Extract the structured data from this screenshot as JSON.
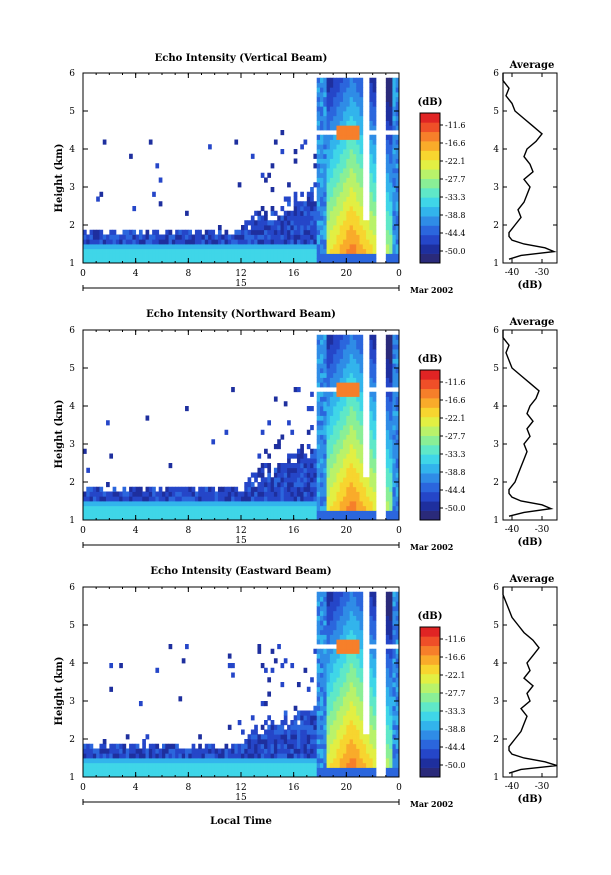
{
  "chart_data": [
    {
      "type": "heatmap",
      "title": "Echo Intensity (Vertical Beam)",
      "ylabel": "Height (km)",
      "xlabel": "",
      "xlim": [
        0,
        24
      ],
      "ylim": [
        1,
        6
      ],
      "xticks": [
        "0",
        "4",
        "8",
        "12",
        "16",
        "20",
        "0"
      ],
      "yticks": [
        "1",
        "2",
        "3",
        "4",
        "5",
        "6"
      ],
      "date_bar": {
        "day": "15",
        "month_year": "Mar 2002"
      },
      "colorbar": {
        "title": "(dB)",
        "labels": [
          "-11.6",
          "-16.6",
          "-22.1",
          "-27.7",
          "-33.3",
          "-38.8",
          "-44.4",
          "-50.0"
        ]
      },
      "profile": {
        "title": "Average",
        "xlabel": "(dB)",
        "xticks": [
          "-40",
          "-30"
        ],
        "xlim": [
          -43,
          -25
        ],
        "ylim": [
          1,
          6
        ],
        "heights": [
          1.1,
          1.2,
          1.3,
          1.4,
          1.5,
          1.6,
          1.7,
          1.8,
          1.9,
          2.0,
          2.2,
          2.4,
          2.6,
          2.8,
          3.0,
          3.2,
          3.4,
          3.6,
          3.8,
          4.0,
          4.2,
          4.4,
          4.6,
          4.8,
          5.0,
          5.2,
          5.4,
          5.6,
          5.8,
          6.0
        ],
        "values": [
          -41,
          -37,
          -26,
          -29,
          -36,
          -40,
          -41,
          -41,
          -40,
          -39,
          -37,
          -38,
          -36,
          -35,
          -34,
          -36,
          -33,
          -34,
          -36,
          -35,
          -32,
          -30,
          -33,
          -36,
          -39,
          -40,
          -42,
          -41,
          -43,
          -43
        ]
      }
    },
    {
      "type": "heatmap",
      "title": "Echo Intensity (Northward Beam)",
      "ylabel": "Height (km)",
      "xlabel": "",
      "xlim": [
        0,
        24
      ],
      "ylim": [
        1,
        6
      ],
      "xticks": [
        "0",
        "4",
        "8",
        "12",
        "16",
        "20",
        "0"
      ],
      "yticks": [
        "1",
        "2",
        "3",
        "4",
        "5",
        "6"
      ],
      "date_bar": {
        "day": "15",
        "month_year": "Mar 2002"
      },
      "colorbar": {
        "title": "(dB)",
        "labels": [
          "-11.6",
          "-16.6",
          "-22.1",
          "-27.7",
          "-33.3",
          "-38.8",
          "-44.4",
          "-50.0"
        ]
      },
      "profile": {
        "title": "Average",
        "xlabel": "(dB)",
        "xticks": [
          "-40",
          "-30"
        ],
        "xlim": [
          -43,
          -25
        ],
        "ylim": [
          1,
          6
        ],
        "heights": [
          1.1,
          1.2,
          1.3,
          1.4,
          1.5,
          1.6,
          1.7,
          1.8,
          1.9,
          2.0,
          2.2,
          2.4,
          2.6,
          2.8,
          3.0,
          3.2,
          3.4,
          3.6,
          3.8,
          4.0,
          4.2,
          4.4,
          4.6,
          4.8,
          5.0,
          5.2,
          5.4,
          5.6,
          5.8,
          6.0
        ],
        "values": [
          -41,
          -36,
          -27,
          -30,
          -37,
          -40,
          -41,
          -41,
          -40,
          -39,
          -38,
          -37,
          -36,
          -35,
          -36,
          -34,
          -35,
          -33,
          -35,
          -34,
          -32,
          -31,
          -34,
          -37,
          -40,
          -41,
          -42,
          -41,
          -43,
          -43
        ]
      }
    },
    {
      "type": "heatmap",
      "title": "Echo Intensity (Eastward Beam)",
      "ylabel": "Height (km)",
      "xlabel": "Local Time",
      "xlim": [
        0,
        24
      ],
      "ylim": [
        1,
        6
      ],
      "xticks": [
        "0",
        "4",
        "8",
        "12",
        "16",
        "20",
        "0"
      ],
      "yticks": [
        "1",
        "2",
        "3",
        "4",
        "5",
        "6"
      ],
      "date_bar": {
        "day": "15",
        "month_year": "Mar 2002"
      },
      "colorbar": {
        "title": "(dB)",
        "labels": [
          "-11.6",
          "-16.6",
          "-22.1",
          "-27.7",
          "-33.3",
          "-38.8",
          "-44.4",
          "-50.0"
        ]
      },
      "profile": {
        "title": "Average",
        "xlabel": "(dB)",
        "xticks": [
          "-40",
          "-30"
        ],
        "xlim": [
          -43,
          -25
        ],
        "ylim": [
          1,
          6
        ],
        "heights": [
          1.1,
          1.2,
          1.3,
          1.4,
          1.5,
          1.6,
          1.7,
          1.8,
          1.9,
          2.0,
          2.2,
          2.4,
          2.6,
          2.8,
          3.0,
          3.2,
          3.4,
          3.6,
          3.8,
          4.0,
          4.2,
          4.4,
          4.6,
          4.8,
          5.0,
          5.2,
          5.4,
          5.6,
          5.8,
          6.0
        ],
        "values": [
          -41,
          -37,
          -25,
          -29,
          -36,
          -40,
          -41,
          -41,
          -40,
          -39,
          -37,
          -36,
          -35,
          -37,
          -34,
          -35,
          -33,
          -36,
          -34,
          -35,
          -33,
          -31,
          -33,
          -36,
          -38,
          -40,
          -41,
          -42,
          -43,
          -43
        ]
      }
    }
  ],
  "colors": {
    "palette": [
      "#2a2a7a",
      "#1e2f9e",
      "#2546c8",
      "#2b66dd",
      "#2f8ce6",
      "#32b4ec",
      "#3fd6e8",
      "#5fe8c8",
      "#8aef96",
      "#b9f26a",
      "#e2ef43",
      "#f7d52f",
      "#f9ab2a",
      "#f67f2a",
      "#ef4f28",
      "#e02424"
    ],
    "axis": "#000000",
    "background": "#ffffff"
  }
}
